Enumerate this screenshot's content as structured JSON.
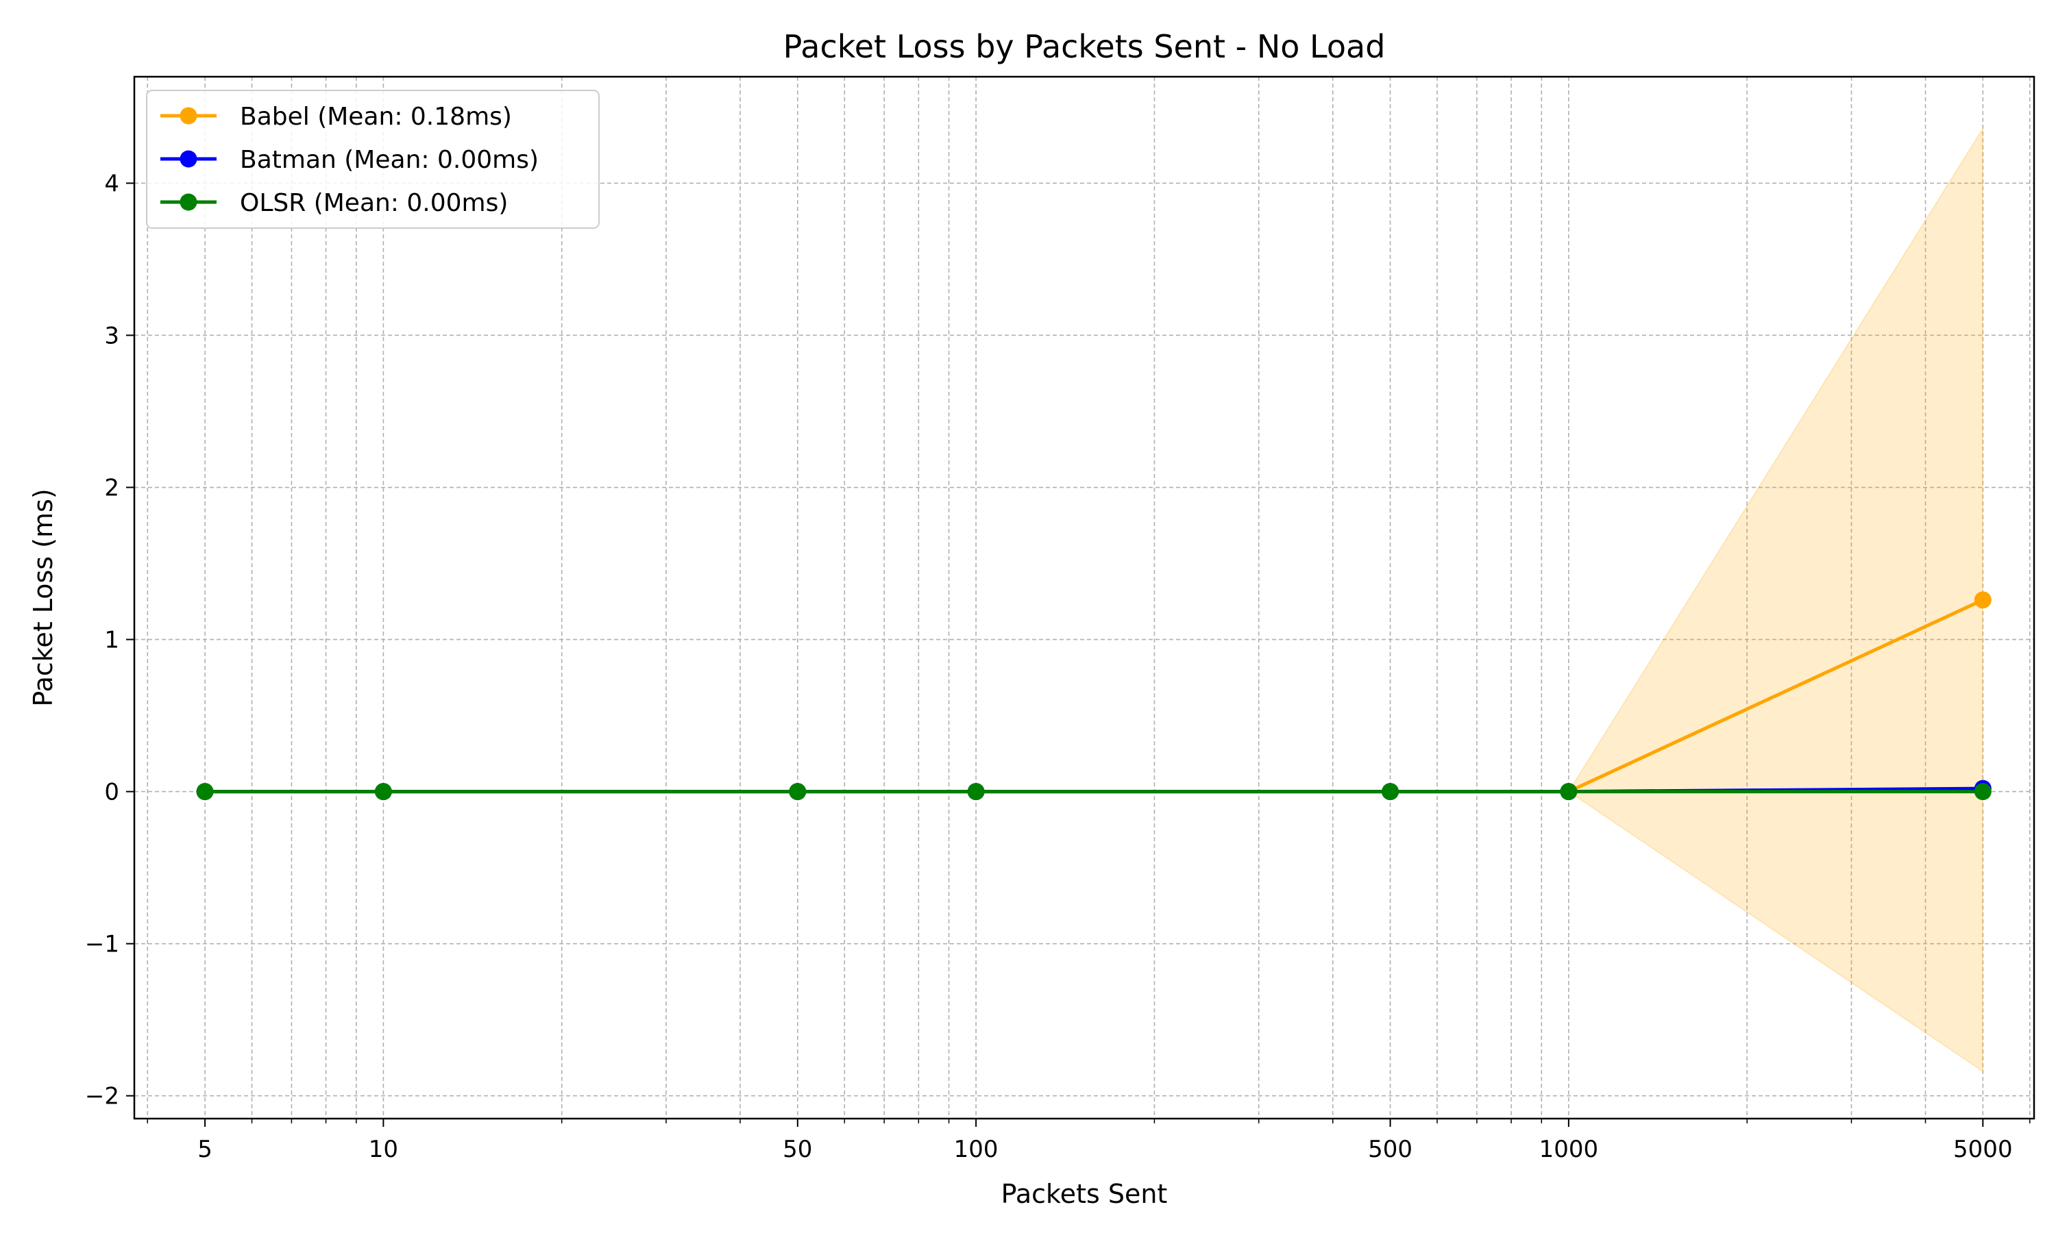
{
  "chart_data": {
    "type": "line",
    "title": "Packet Loss by Packets Sent - No Load",
    "xlabel": "Packets Sent",
    "ylabel": "Packet Loss (ms)",
    "xscale": "log",
    "x": [
      5,
      10,
      50,
      100,
      500,
      1000,
      5000
    ],
    "xlim": [
      3.8,
      6100
    ],
    "ylim": [
      -2.15,
      4.7
    ],
    "x_ticks": [
      5,
      10,
      50,
      100,
      500,
      1000,
      5000
    ],
    "y_ticks": [
      -2,
      -1,
      0,
      1,
      2,
      3,
      4
    ],
    "y_tick_labels": [
      "−2",
      "−1",
      "0",
      "1",
      "2",
      "3",
      "4"
    ],
    "grid": true,
    "legend_position": "top-left",
    "series": [
      {
        "name": "Babel (Mean: 0.18ms)",
        "color": "#FFA500",
        "values": [
          0,
          0,
          0,
          0,
          0,
          0,
          1.26
        ],
        "band_lower": [
          0,
          0,
          0,
          0,
          0,
          0,
          -1.84
        ],
        "band_upper": [
          0,
          0,
          0,
          0,
          0,
          0,
          4.36
        ]
      },
      {
        "name": "Batman (Mean: 0.00ms)",
        "color": "#0000FF",
        "values": [
          0,
          0,
          0,
          0,
          0,
          0,
          0.02
        ]
      },
      {
        "name": "OLSR (Mean: 0.00ms)",
        "color": "#008000",
        "values": [
          0,
          0,
          0,
          0,
          0,
          0,
          0
        ]
      }
    ]
  }
}
